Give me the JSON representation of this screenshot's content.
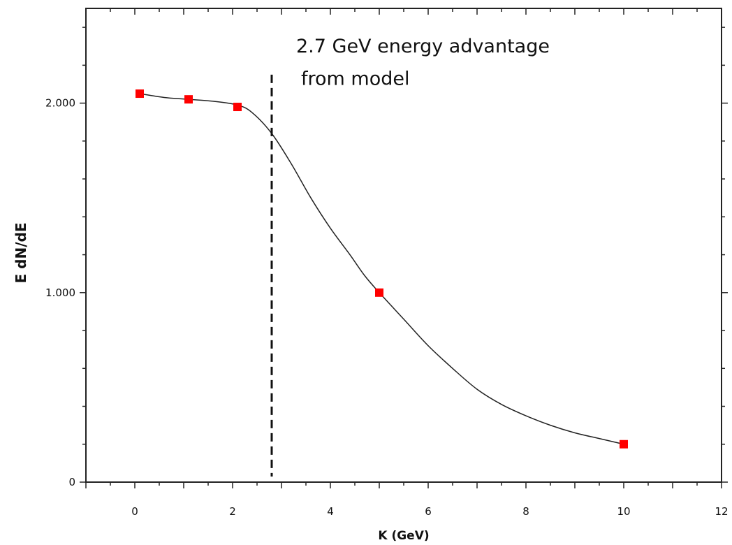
{
  "chart_data": {
    "type": "scatter",
    "xlabel": "K (GeV)",
    "ylabel": "E dN/dE",
    "xlim": [
      -1,
      12
    ],
    "ylim": [
      0,
      2.5
    ],
    "x_ticks": [
      0,
      2,
      4,
      6,
      8,
      10,
      12
    ],
    "x_tick_labels": [
      "0",
      "2",
      "4",
      "6",
      "8",
      "10",
      "12"
    ],
    "y_ticks": [
      0,
      1.0,
      2.0
    ],
    "y_tick_labels": [
      "0",
      "1.000",
      "2.000"
    ],
    "grid": false,
    "series": [
      {
        "points": [
          {
            "x": 0.1,
            "y": 2.05
          },
          {
            "x": 1.1,
            "y": 2.02
          },
          {
            "x": 2.1,
            "y": 1.98
          },
          {
            "x": 5.0,
            "y": 1.0
          },
          {
            "x": 10.0,
            "y": 0.2
          }
        ],
        "marker": "square",
        "color": "#ff0000"
      }
    ],
    "fit_curve": {
      "color": "#222222",
      "points": [
        {
          "x": 0.1,
          "y": 2.05
        },
        {
          "x": 0.6,
          "y": 2.03
        },
        {
          "x": 1.1,
          "y": 2.02
        },
        {
          "x": 1.6,
          "y": 2.01
        },
        {
          "x": 2.1,
          "y": 1.99
        },
        {
          "x": 2.4,
          "y": 1.95
        },
        {
          "x": 2.8,
          "y": 1.84
        },
        {
          "x": 3.2,
          "y": 1.68
        },
        {
          "x": 3.6,
          "y": 1.5
        },
        {
          "x": 4.0,
          "y": 1.34
        },
        {
          "x": 4.4,
          "y": 1.2
        },
        {
          "x": 4.7,
          "y": 1.09
        },
        {
          "x": 5.0,
          "y": 1.0
        },
        {
          "x": 5.5,
          "y": 0.86
        },
        {
          "x": 6.0,
          "y": 0.72
        },
        {
          "x": 6.5,
          "y": 0.6
        },
        {
          "x": 7.0,
          "y": 0.49
        },
        {
          "x": 7.5,
          "y": 0.41
        },
        {
          "x": 8.0,
          "y": 0.35
        },
        {
          "x": 8.5,
          "y": 0.3
        },
        {
          "x": 9.0,
          "y": 0.26
        },
        {
          "x": 9.5,
          "y": 0.23
        },
        {
          "x": 10.0,
          "y": 0.2
        }
      ]
    },
    "vline": {
      "x": 2.8,
      "y_top": 2.15,
      "style": "dashed",
      "color": "#111111"
    },
    "annotations": [
      {
        "text": "2.7 GeV energy advantage",
        "x": 3.3,
        "y": 2.3
      },
      {
        "text": "from model",
        "x": 3.4,
        "y": 2.13
      }
    ]
  }
}
